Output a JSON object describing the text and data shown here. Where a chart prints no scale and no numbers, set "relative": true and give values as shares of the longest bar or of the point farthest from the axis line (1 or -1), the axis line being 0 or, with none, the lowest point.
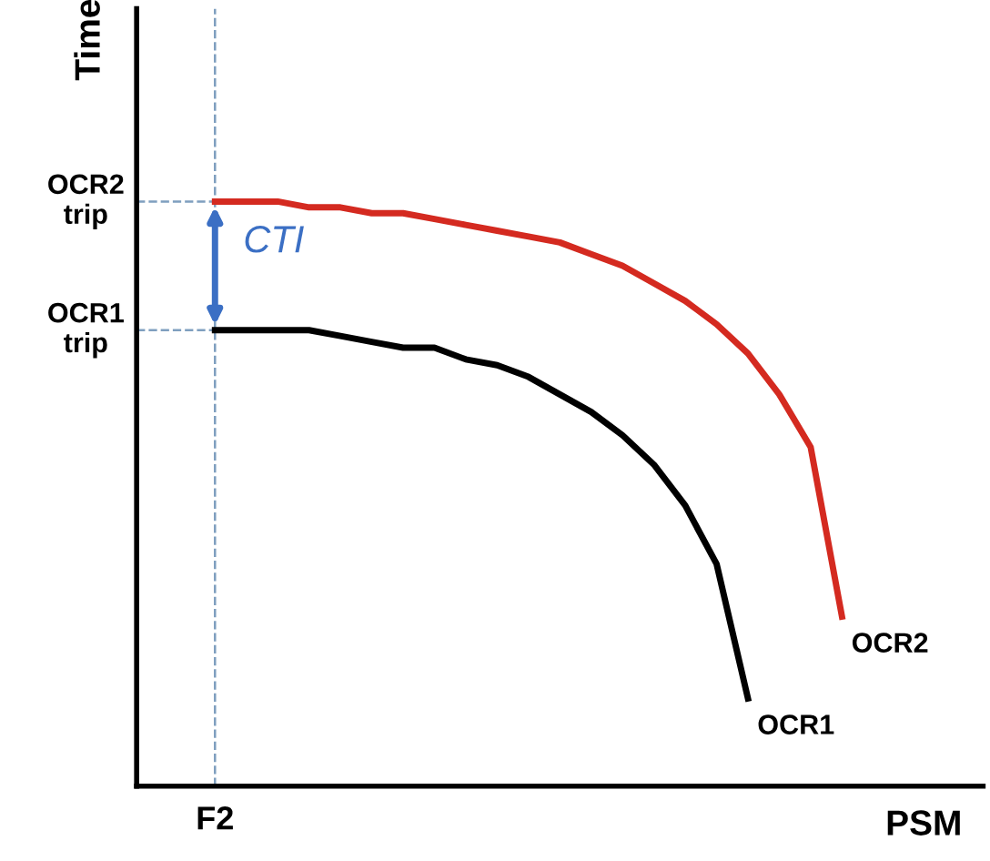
{
  "chart_data": {
    "type": "line",
    "relative": true,
    "xlabel": "PSM",
    "ylabel": "Time",
    "categories": [
      null,
      null,
      null,
      null,
      null,
      null,
      null,
      null,
      null,
      null,
      null,
      null,
      null,
      null,
      null,
      null,
      null,
      null,
      null,
      null,
      null,
      null,
      null,
      null,
      null,
      null,
      null
    ],
    "series": [
      {
        "name": "OCR1",
        "color": "#000000",
        "values": [
          null,
          null,
          0.78,
          0.78,
          0.78,
          0.78,
          0.77,
          0.76,
          0.75,
          0.75,
          0.73,
          0.72,
          0.7,
          0.67,
          0.64,
          0.6,
          0.55,
          0.48,
          0.38,
          0.15,
          null,
          null,
          null,
          null,
          null,
          null,
          null
        ]
      },
      {
        "name": "OCR2",
        "color": "#d42a20",
        "values": [
          null,
          null,
          1.0,
          1.0,
          1.0,
          0.99,
          0.99,
          0.98,
          0.98,
          0.97,
          0.96,
          0.95,
          0.94,
          0.93,
          0.91,
          0.89,
          0.86,
          0.83,
          0.79,
          0.74,
          0.67,
          0.58,
          0.29,
          null,
          null,
          null,
          null
        ]
      }
    ],
    "ref_lines": [
      {
        "axis": "y",
        "value": 1.0,
        "label": "OCR2\ntrip",
        "color": "#7f9fbf",
        "line_style": "dashed"
      },
      {
        "axis": "y",
        "value": 0.78,
        "label": "OCR1\ntrip",
        "color": "#7f9fbf",
        "line_style": "dashed"
      },
      {
        "axis": "x",
        "label": "F2",
        "color": "#7f9fbf",
        "line_style": "dashed"
      }
    ],
    "annotations": [
      "CTI"
    ],
    "legend": false,
    "marker": "none",
    "line_style": "solid"
  }
}
